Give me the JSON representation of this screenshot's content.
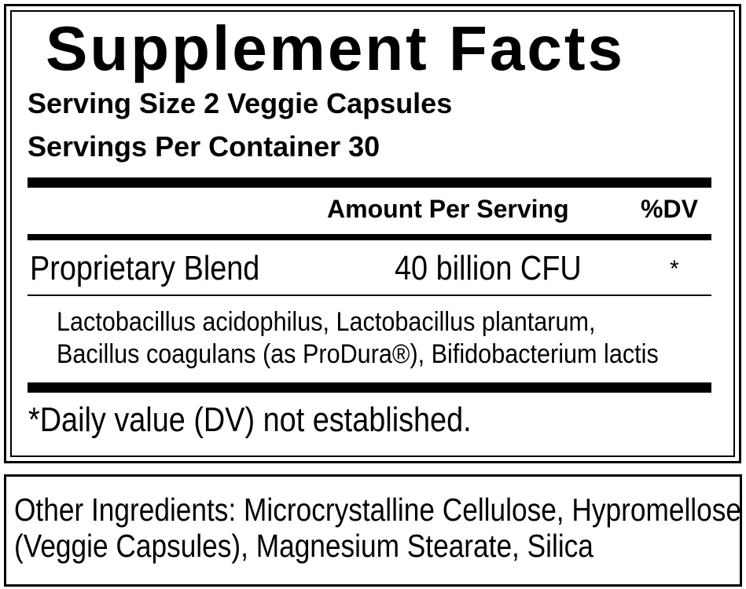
{
  "label": {
    "title": "Supplement Facts",
    "serving_size": "Serving Size 2 Veggie Capsules",
    "servings_per_container": "Servings Per Container 30",
    "header": {
      "amount": "Amount Per Serving",
      "dv": "%DV"
    },
    "rows": [
      [
        "Proprietary Blend",
        "40 billion CFU",
        "*"
      ]
    ],
    "blend_ingredients": [
      "Lactobacillus acidophilus, Lactobacillus plantarum,",
      "Bacillus coagulans (as ProDura®), Bifidobacterium lactis"
    ],
    "footnote": "*Daily value (DV) not established."
  },
  "other_ingredients": [
    "Other Ingredients: Microcrystalline Cellulose, Hypromellose",
    "(Veggie Capsules), Magnesium Stearate, Silica"
  ]
}
